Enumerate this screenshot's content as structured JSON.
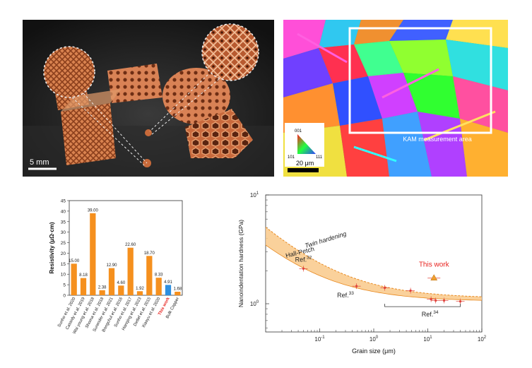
{
  "photo_panel": {
    "scale_label": "5 mm"
  },
  "ebsd_panel": {
    "kam_label": "KAM measurement area",
    "legend_corners": [
      "001",
      "101",
      "111"
    ],
    "scale_label": "20 μm"
  },
  "chart_data": [
    {
      "type": "bar",
      "title": "",
      "xlabel": "",
      "ylabel": "Resistivity (μΩ·cm)",
      "ylim": [
        0,
        45
      ],
      "yticks": [
        0,
        5,
        10,
        15,
        20,
        25,
        30,
        35,
        40,
        45
      ],
      "categories": [
        "Sunho et al. 2020",
        "Cassidy et al. 2019",
        "Wai young et al. 2018",
        "Shoma et al. 2018",
        "Surender et al. 2021",
        "Bongchul et al. 2016",
        "Sunho et al. 2017",
        "Hanqing et al. 2023",
        "Detlef et al. 2015",
        "Xiaoyu et al. 2020",
        "This work",
        "Bulk Copper"
      ],
      "values": [
        15.0,
        8.18,
        39.0,
        2.38,
        12.9,
        4.6,
        22.6,
        1.92,
        18.7,
        8.33,
        4.91,
        1.68
      ],
      "value_labels": [
        "15.00",
        "8.18",
        "39.00",
        "2.38",
        "12.90",
        "4.60",
        "22.60",
        "1.92",
        "18.70",
        "8.33",
        "4.91",
        "1.68"
      ],
      "colors": {
        "bar": "#f5901e",
        "highlight": "#2e8fe0",
        "highlight_label": "#e8231f"
      }
    },
    {
      "type": "scatter",
      "title": "",
      "xlabel": "Grain size (μm)",
      "ylabel": "Nanoindentation hardness (GPa)",
      "x_scale": "log",
      "y_scale": "log",
      "xlim": [
        0.01,
        100
      ],
      "ylim": [
        0.55,
        10
      ],
      "xtick_labels": [
        "10<sup>-1</sup>",
        "10<sup>0</sup>",
        "10<sup>1</sup>",
        "10<sup>2</sup>"
      ],
      "ytick_labels": [
        "10<sup>0</sup>",
        "10<sup>1</sup>"
      ],
      "curves": [
        {
          "name": "Twin hardening",
          "style": "dashed"
        },
        {
          "name": "Hall-Petch",
          "style": "solid"
        }
      ],
      "points": [
        {
          "x": 0.05,
          "y": 2.1,
          "group": "Ref. 32"
        },
        {
          "x": 0.48,
          "y": 1.45,
          "group": "Ref. 33"
        },
        {
          "x": 1.6,
          "y": 1.4,
          "group": "Ref. 34"
        },
        {
          "x": 4.8,
          "y": 1.32,
          "group": "Ref. 34"
        },
        {
          "x": 11.5,
          "y": 1.1,
          "group": "Ref. 34"
        },
        {
          "x": 14.0,
          "y": 1.07,
          "group": "Ref. 34"
        },
        {
          "x": 20.0,
          "y": 1.07,
          "group": "Ref. 34"
        },
        {
          "x": 40.0,
          "y": 1.05,
          "group": "Ref. 34"
        },
        {
          "x": 13.0,
          "y": 1.72,
          "group": "This work"
        }
      ],
      "annotations": [
        "Ref.<sup>32</sup>",
        "Ref.<sup>33</sup>",
        "Ref.<sup>34</sup>",
        "This work"
      ],
      "colors": {
        "band": "#f9c98a",
        "curve": "#e8881e",
        "point": "#e0433a",
        "this_work": "#e8231f",
        "this_work_marker": "#f0a030"
      }
    }
  ]
}
